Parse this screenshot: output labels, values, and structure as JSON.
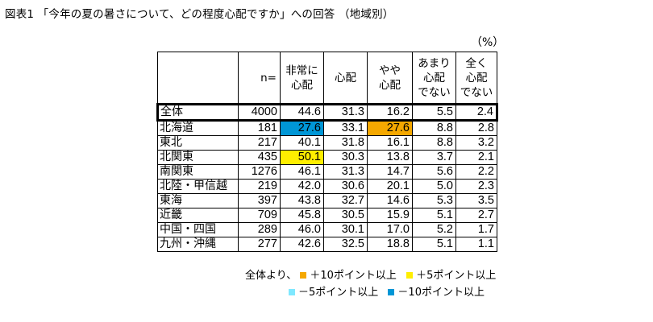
{
  "title": "図表1 「今年の夏の暑さについて、どの程度心配ですか」への回答 （地域別）",
  "unit": "（%）",
  "colors": {
    "plus10": "#f5a800",
    "plus5": "#ffee00",
    "minus5": "#7fe8ff",
    "minus10": "#0096d6"
  },
  "table": {
    "headers": {
      "n": "n=",
      "c1": [
        "非常に",
        "心配"
      ],
      "c2": [
        "心配"
      ],
      "c3": [
        "やや",
        "心配"
      ],
      "c4": [
        "あまり",
        "心配",
        "でない"
      ],
      "c5": [
        "全く",
        "心配",
        "でない"
      ]
    },
    "rows": [
      {
        "label": "全体",
        "values": [
          "4000",
          "44.6",
          "31.3",
          "16.2",
          "5.5",
          "2.4"
        ],
        "highlights": [
          null,
          null,
          null,
          null,
          null,
          null
        ],
        "total": true
      },
      {
        "label": "北海道",
        "values": [
          "181",
          "27.6",
          "33.1",
          "27.6",
          "8.8",
          "2.8"
        ],
        "highlights": [
          null,
          "minus10",
          null,
          "plus10",
          null,
          null
        ]
      },
      {
        "label": "東北",
        "values": [
          "217",
          "40.1",
          "31.8",
          "16.1",
          "8.8",
          "3.2"
        ],
        "highlights": [
          null,
          null,
          null,
          null,
          null,
          null
        ]
      },
      {
        "label": "北関東",
        "values": [
          "435",
          "50.1",
          "30.3",
          "13.8",
          "3.7",
          "2.1"
        ],
        "highlights": [
          null,
          "plus5",
          null,
          null,
          null,
          null
        ]
      },
      {
        "label": "南関東",
        "values": [
          "1276",
          "46.1",
          "31.3",
          "14.7",
          "5.6",
          "2.2"
        ],
        "highlights": [
          null,
          null,
          null,
          null,
          null,
          null
        ]
      },
      {
        "label": "北陸・甲信越",
        "values": [
          "219",
          "42.0",
          "30.6",
          "20.1",
          "5.0",
          "2.3"
        ],
        "highlights": [
          null,
          null,
          null,
          null,
          null,
          null
        ]
      },
      {
        "label": "東海",
        "values": [
          "397",
          "43.8",
          "32.7",
          "14.6",
          "5.3",
          "3.5"
        ],
        "highlights": [
          null,
          null,
          null,
          null,
          null,
          null
        ]
      },
      {
        "label": "近畿",
        "values": [
          "709",
          "45.8",
          "30.5",
          "15.9",
          "5.1",
          "2.7"
        ],
        "highlights": [
          null,
          null,
          null,
          null,
          null,
          null
        ]
      },
      {
        "label": "中国・四国",
        "values": [
          "289",
          "46.0",
          "30.1",
          "17.0",
          "5.2",
          "1.7"
        ],
        "highlights": [
          null,
          null,
          null,
          null,
          null,
          null
        ]
      },
      {
        "label": "九州・沖縄",
        "values": [
          "277",
          "42.6",
          "32.5",
          "18.8",
          "5.1",
          "1.1"
        ],
        "highlights": [
          null,
          null,
          null,
          null,
          null,
          null
        ]
      }
    ]
  },
  "legend": {
    "prefix": "全体より、",
    "plus10": "＋10ポイント以上",
    "plus5": "＋5ポイント以上",
    "minus5": "－5ポイント以上",
    "minus10": "－10ポイント以上"
  }
}
